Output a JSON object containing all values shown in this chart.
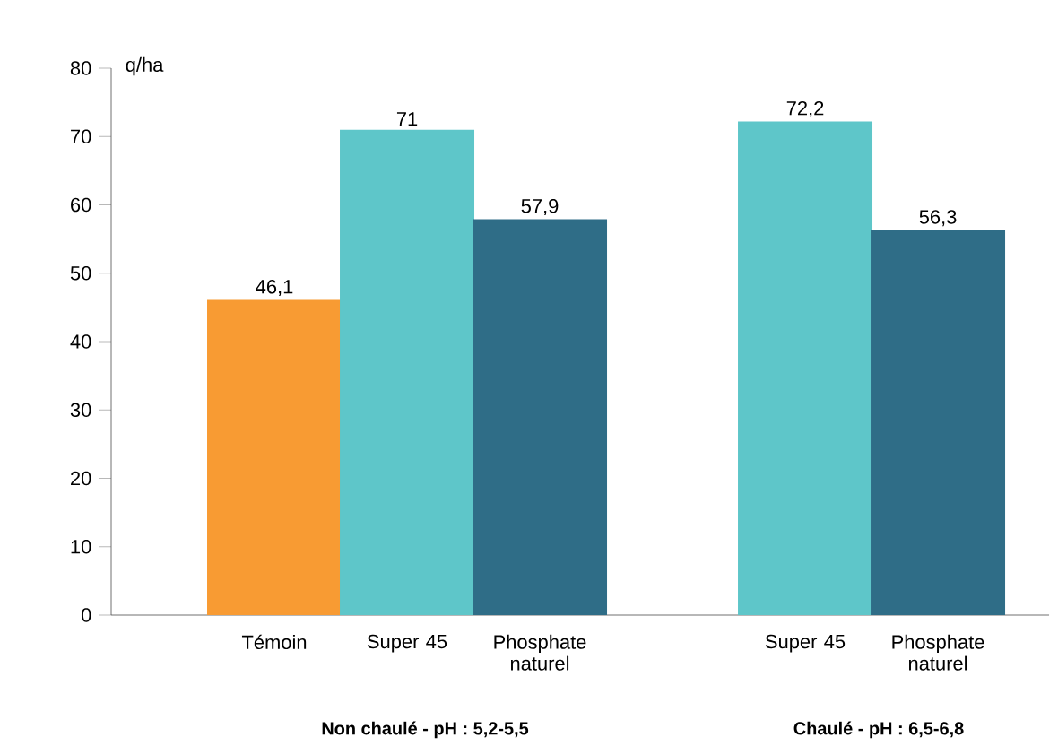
{
  "chart_data": {
    "type": "bar",
    "ylabel": "q/ha",
    "categories": [
      "Témoin",
      "Super 45",
      "Phosphate naturel",
      null,
      "Super 45",
      "Phosphate naturel"
    ],
    "values": [
      46.1,
      71,
      57.9,
      null,
      72.2,
      56.3
    ],
    "colors": [
      "#f89b33",
      "#5ec6c9",
      "#2f6d87",
      null,
      "#5ec6c9",
      "#2f6d87"
    ],
    "value_labels": [
      "46,1",
      "71",
      "57,9",
      null,
      "72,2",
      "56,3"
    ],
    "ylim": [
      0,
      80
    ],
    "yticks": [
      0,
      10,
      20,
      30,
      40,
      50,
      60,
      70,
      80
    ],
    "annotations": [
      "**Non chaulé - pH : 5,2-5,5**",
      "**Chaulé - pH : 6,5-6,8**"
    ],
    "grid": false
  }
}
